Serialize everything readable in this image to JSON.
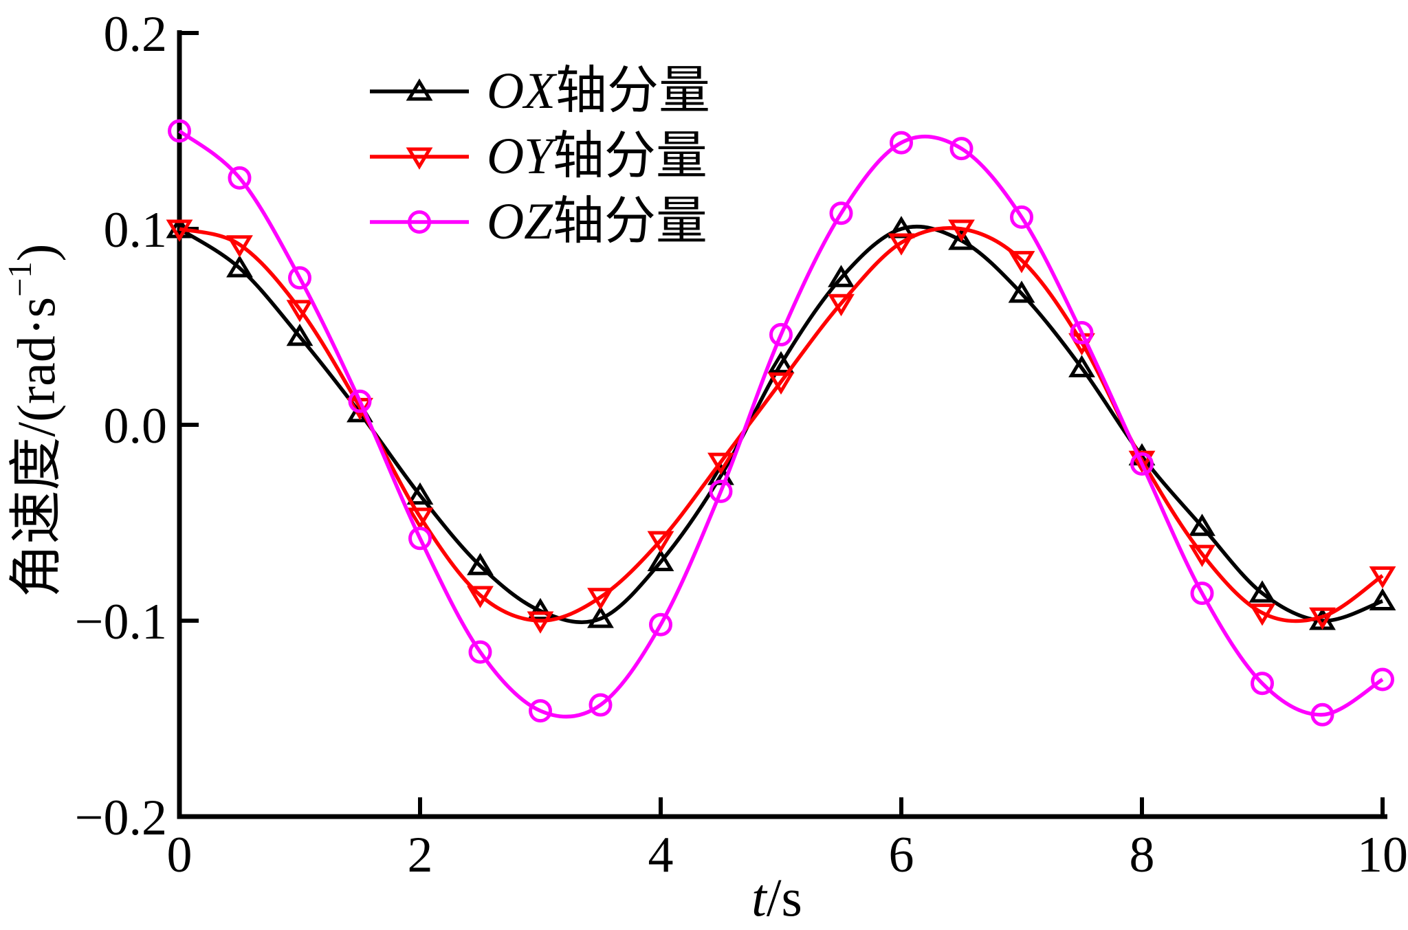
{
  "figure": {
    "background": "#ffffff",
    "ylabel": {
      "prefix": "角速度/(rad·s",
      "sup": "−1",
      "suffix": ")"
    },
    "xlabel": {
      "var": "t",
      "rest": "/s"
    }
  },
  "legend": {
    "items": [
      {
        "var": "OX",
        "rest": "轴分量",
        "label": "OX轴分量",
        "color": "#000000",
        "marker": "triangle-up"
      },
      {
        "var": "OY",
        "rest": "轴分量",
        "label": "OY轴分量",
        "color": "#ff0000",
        "marker": "triangle-down"
      },
      {
        "var": "OZ",
        "rest": "轴分量",
        "label": "OZ轴分量",
        "color": "#ff00ff",
        "marker": "circle"
      }
    ]
  },
  "chart_data": {
    "type": "line",
    "title": "",
    "xlabel": "t/s",
    "ylabel": "角速度/(rad·s−1)",
    "xlim": [
      0,
      10
    ],
    "ylim": [
      -0.2,
      0.2
    ],
    "x_ticks": [
      0,
      2,
      4,
      6,
      8,
      10
    ],
    "y_ticks": [
      0.2,
      0.1,
      0.0,
      -0.1,
      -0.2
    ],
    "x_tick_labels": [
      "0",
      "2",
      "4",
      "6",
      "8",
      "10"
    ],
    "y_tick_labels": [
      "0.2",
      "0.1",
      "0.0",
      "−0.1",
      "−0.2"
    ],
    "grid": false,
    "legend_position": "upper-left-inside",
    "marker_interval": 0.5,
    "x": [
      0,
      0.5,
      1,
      1.5,
      2,
      2.5,
      3,
      3.5,
      4,
      4.5,
      5,
      5.5,
      6,
      6.5,
      7,
      7.5,
      8,
      8.5,
      9,
      9.5,
      10
    ],
    "series": [
      {
        "name": "OX轴分量",
        "color": "#000000",
        "marker": "triangle-up",
        "values": [
          0.1,
          0.08,
          0.045,
          0.006,
          -0.036,
          -0.072,
          -0.095,
          -0.099,
          -0.07,
          -0.026,
          0.031,
          0.075,
          0.1,
          0.094,
          0.067,
          0.029,
          -0.016,
          -0.052,
          -0.086,
          -0.1,
          -0.09
        ]
      },
      {
        "name": "OY轴分量",
        "color": "#ff0000",
        "marker": "triangle-down",
        "values": [
          0.1,
          0.092,
          0.059,
          0.009,
          -0.047,
          -0.087,
          -0.1,
          -0.088,
          -0.059,
          -0.019,
          0.022,
          0.062,
          0.093,
          0.1,
          0.084,
          0.042,
          -0.018,
          -0.066,
          -0.096,
          -0.098,
          -0.077
        ]
      },
      {
        "name": "OZ轴分量",
        "color": "#ff00ff",
        "marker": "circle",
        "values": [
          0.15,
          0.126,
          0.075,
          0.012,
          -0.058,
          -0.116,
          -0.146,
          -0.143,
          -0.102,
          -0.034,
          0.046,
          0.108,
          0.144,
          0.141,
          0.106,
          0.047,
          -0.02,
          -0.086,
          -0.132,
          -0.148,
          -0.13
        ]
      }
    ]
  }
}
